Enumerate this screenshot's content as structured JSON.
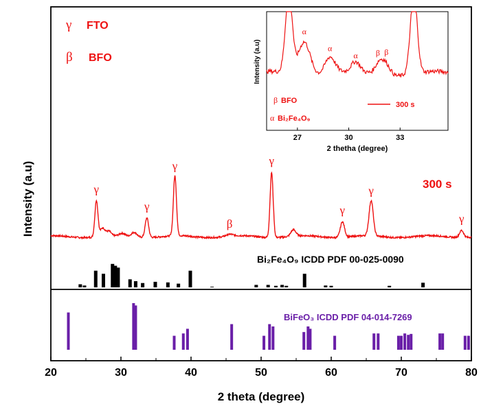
{
  "chart_data": {
    "type": "line",
    "xlabel": "2 theta (degree)",
    "ylabel": "Intensity (a.u)",
    "xlim": [
      20,
      80
    ],
    "x_ticks": [
      "20",
      "30",
      "40",
      "50",
      "60",
      "70",
      "80"
    ],
    "legend_main": [
      {
        "symbol": "γ",
        "label": "FTO"
      },
      {
        "symbol": "β",
        "label": "BFO"
      }
    ],
    "sample_label": "300 s",
    "series_color": "#ee1111",
    "xrd_peaks": [
      {
        "x": 26.5,
        "h": 0.56,
        "w": 0.22
      },
      {
        "x": 27.4,
        "h": 0.13,
        "w": 0.35
      },
      {
        "x": 28.3,
        "h": 0.07,
        "w": 0.3
      },
      {
        "x": 30.2,
        "h": 0.04,
        "w": 0.4
      },
      {
        "x": 31.9,
        "h": 0.07,
        "w": 0.4
      },
      {
        "x": 33.7,
        "h": 0.3,
        "w": 0.25
      },
      {
        "x": 37.7,
        "h": 0.92,
        "w": 0.22
      },
      {
        "x": 45.5,
        "h": 0.03,
        "w": 0.5
      },
      {
        "x": 51.5,
        "h": 1.0,
        "w": 0.22
      },
      {
        "x": 54.6,
        "h": 0.1,
        "w": 0.35
      },
      {
        "x": 61.6,
        "h": 0.24,
        "w": 0.3
      },
      {
        "x": 65.7,
        "h": 0.54,
        "w": 0.3
      },
      {
        "x": 78.6,
        "h": 0.11,
        "w": 0.3
      }
    ],
    "peak_markers": [
      {
        "x": 26.5,
        "symbol": "γ"
      },
      {
        "x": 33.7,
        "symbol": "γ"
      },
      {
        "x": 37.7,
        "symbol": "γ"
      },
      {
        "x": 45.5,
        "symbol": "β"
      },
      {
        "x": 51.5,
        "symbol": "γ"
      },
      {
        "x": 61.6,
        "symbol": "γ"
      },
      {
        "x": 65.7,
        "symbol": "γ"
      },
      {
        "x": 78.6,
        "symbol": "γ"
      }
    ],
    "bi2fe4o9_reference": {
      "label": "Bi₂Fe₄O₉ ICDD PDF 00-025-0090",
      "color": "#000000",
      "sticks": [
        [
          24.2,
          0.1
        ],
        [
          24.8,
          0.06
        ],
        [
          26.4,
          0.54
        ],
        [
          27.5,
          0.44
        ],
        [
          28.8,
          0.76
        ],
        [
          29.2,
          0.7
        ],
        [
          29.6,
          0.64
        ],
        [
          31.3,
          0.26
        ],
        [
          32.1,
          0.2
        ],
        [
          33.1,
          0.14
        ],
        [
          34.9,
          0.18
        ],
        [
          36.7,
          0.16
        ],
        [
          38.2,
          0.12
        ],
        [
          39.9,
          0.54
        ],
        [
          43.0,
          0.02
        ],
        [
          49.3,
          0.08
        ],
        [
          51.0,
          0.08
        ],
        [
          52.1,
          0.05
        ],
        [
          53.0,
          0.08
        ],
        [
          53.6,
          0.05
        ],
        [
          56.2,
          0.44
        ],
        [
          59.2,
          0.06
        ],
        [
          60.0,
          0.05
        ],
        [
          68.3,
          0.05
        ],
        [
          73.1,
          0.15
        ]
      ]
    },
    "bifeo3_reference": {
      "label": "BiFeO₃ ICDD PDF 04-014-7269",
      "color": "#6a1fa8",
      "sticks": [
        [
          22.5,
          0.8
        ],
        [
          31.8,
          1.0
        ],
        [
          32.1,
          0.95
        ],
        [
          37.6,
          0.3
        ],
        [
          38.9,
          0.35
        ],
        [
          39.5,
          0.45
        ],
        [
          45.8,
          0.55
        ],
        [
          50.4,
          0.3
        ],
        [
          51.2,
          0.55
        ],
        [
          51.7,
          0.5
        ],
        [
          56.1,
          0.38
        ],
        [
          56.7,
          0.5
        ],
        [
          57.0,
          0.45
        ],
        [
          60.5,
          0.3
        ],
        [
          66.1,
          0.35
        ],
        [
          66.7,
          0.35
        ],
        [
          69.6,
          0.3
        ],
        [
          70.0,
          0.3
        ],
        [
          70.5,
          0.35
        ],
        [
          71.0,
          0.32
        ],
        [
          71.4,
          0.34
        ],
        [
          75.5,
          0.35
        ],
        [
          75.9,
          0.35
        ],
        [
          79.1,
          0.3
        ],
        [
          79.6,
          0.3
        ]
      ]
    },
    "inset": {
      "xlabel": "2 thetha (degree)",
      "ylabel": "Intensity (a.u)",
      "xlim": [
        25.2,
        35.8
      ],
      "x_ticks": [
        "27",
        "30",
        "33"
      ],
      "legend_symbols": [
        {
          "symbol": "β",
          "label": "BFO"
        },
        {
          "symbol": "α",
          "label": "Bi₂Fe₄O₉"
        }
      ],
      "line_label": "300 s",
      "peaks": [
        {
          "x": 26.5,
          "h": 1.3,
          "w": 0.2
        },
        {
          "x": 27.4,
          "h": 0.55,
          "w": 0.35
        },
        {
          "x": 28.9,
          "h": 0.28,
          "w": 0.3
        },
        {
          "x": 30.4,
          "h": 0.16,
          "w": 0.25
        },
        {
          "x": 31.8,
          "h": 0.2,
          "w": 0.25
        },
        {
          "x": 32.2,
          "h": 0.16,
          "w": 0.25
        },
        {
          "x": 33.8,
          "h": 1.3,
          "w": 0.2
        }
      ],
      "peak_markers": [
        {
          "x": 27.4,
          "symbol": "α"
        },
        {
          "x": 28.9,
          "symbol": "α"
        },
        {
          "x": 30.4,
          "symbol": "α"
        },
        {
          "x": 31.7,
          "symbol": "β"
        },
        {
          "x": 32.2,
          "symbol": "β"
        }
      ]
    }
  }
}
